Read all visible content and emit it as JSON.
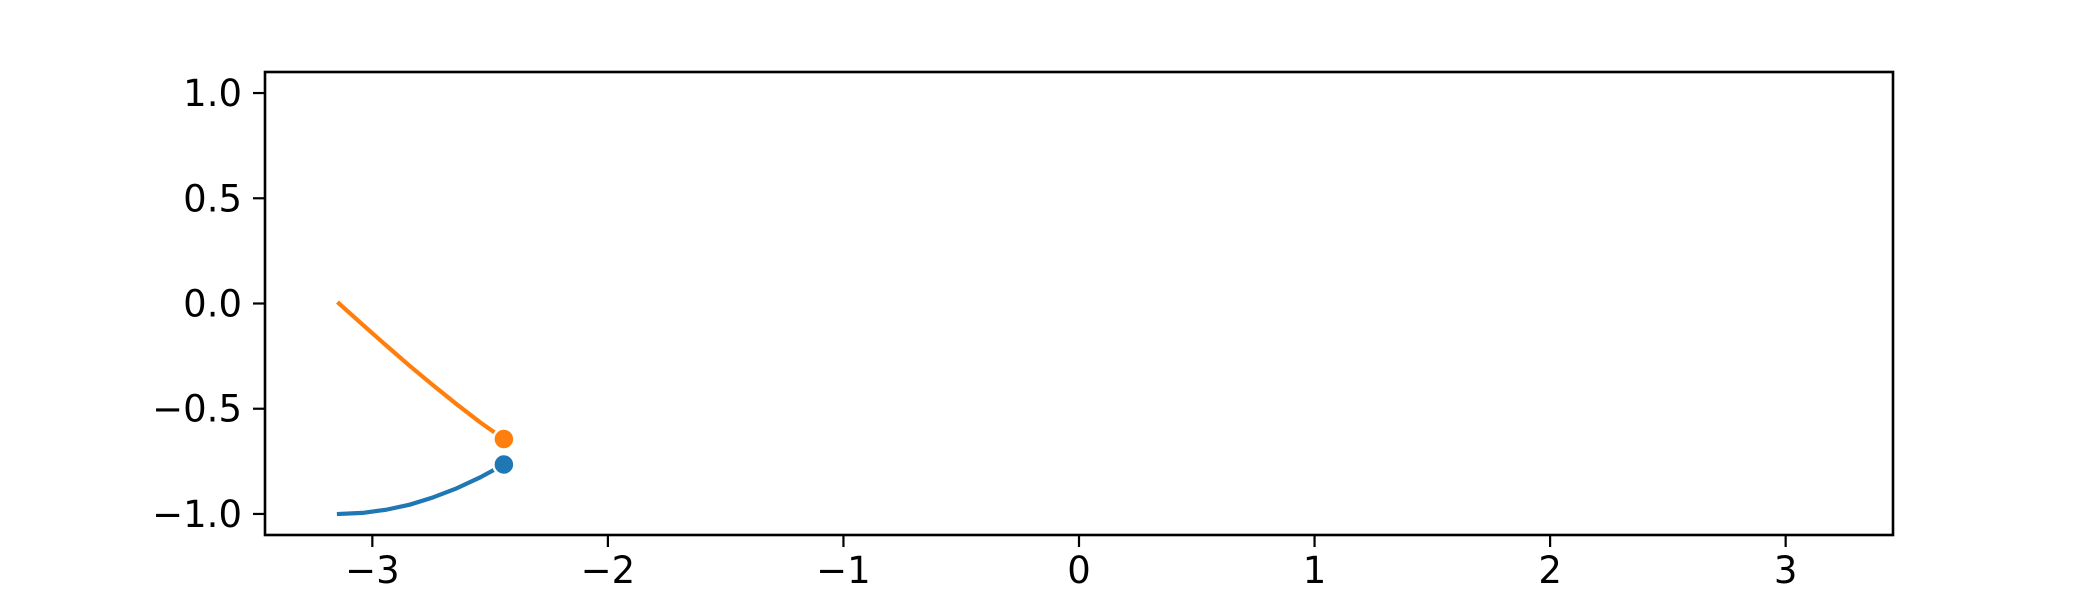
{
  "chart_data": {
    "type": "line",
    "title": "",
    "xlabel": "",
    "ylabel": "",
    "xlim": [
      -3.4557,
      3.4557
    ],
    "ylim": [
      -1.1,
      1.1
    ],
    "xticks": [
      -3,
      -2,
      -1,
      0,
      1,
      2,
      3
    ],
    "yticks": [
      -1.0,
      -0.5,
      0.0,
      0.5,
      1.0
    ],
    "xtick_labels": [
      "−3",
      "−2",
      "−1",
      "0",
      "1",
      "2",
      "3"
    ],
    "ytick_labels": [
      "−1.0",
      "−0.5",
      "0.0",
      "0.5",
      "1.0"
    ],
    "grid": false,
    "series": [
      {
        "color": "#1f77b4",
        "x": [
          -3.1416,
          -3.0416,
          -2.9416,
          -2.8416,
          -2.7416,
          -2.6416,
          -2.5416,
          -2.4416
        ],
        "y": [
          -1.0,
          -0.995,
          -0.98,
          -0.956,
          -0.921,
          -0.878,
          -0.826,
          -0.765
        ],
        "endpoint": {
          "x": -2.4416,
          "y": -0.765
        }
      },
      {
        "color": "#ff7f0e",
        "x": [
          -3.1416,
          -3.0416,
          -2.9416,
          -2.8416,
          -2.7416,
          -2.6416,
          -2.5416,
          -2.4416
        ],
        "y": [
          0.0,
          -0.1,
          -0.199,
          -0.296,
          -0.389,
          -0.479,
          -0.565,
          -0.644
        ],
        "endpoint": {
          "x": -2.4416,
          "y": -0.644
        }
      }
    ]
  }
}
